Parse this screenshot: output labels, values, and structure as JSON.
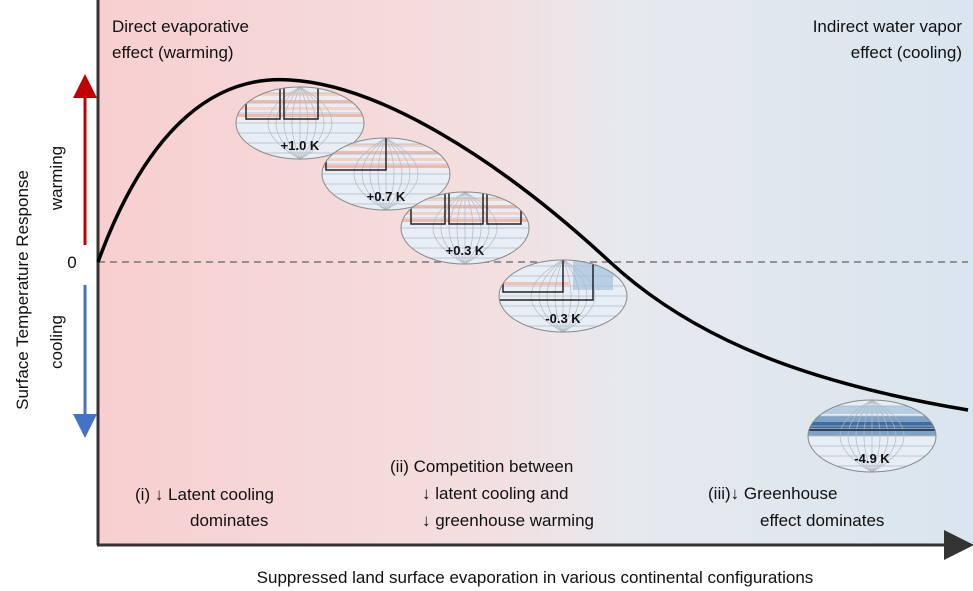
{
  "axis": {
    "y_label": "Surface Temperature Response",
    "x_label": "Suppressed land surface evaporation in various continental configurations",
    "zero": "0",
    "warming": "warming",
    "cooling": "cooling"
  },
  "regions": {
    "left": [
      "Direct evaporative",
      "effect (warming)"
    ],
    "right": [
      "Indirect water vapor",
      "effect (cooling)"
    ]
  },
  "maps": [
    "+1.0 K",
    "+0.7 K",
    "+0.3 K",
    "-0.3 K",
    "-4.9 K"
  ],
  "regimes": [
    [
      "(i) ↓ Latent cooling",
      "dominates"
    ],
    [
      "(ii) Competition between",
      "↓ latent cooling and",
      "↓ greenhouse warming"
    ],
    [
      "(iii)↓ Greenhouse",
      "effect dominates"
    ]
  ]
}
